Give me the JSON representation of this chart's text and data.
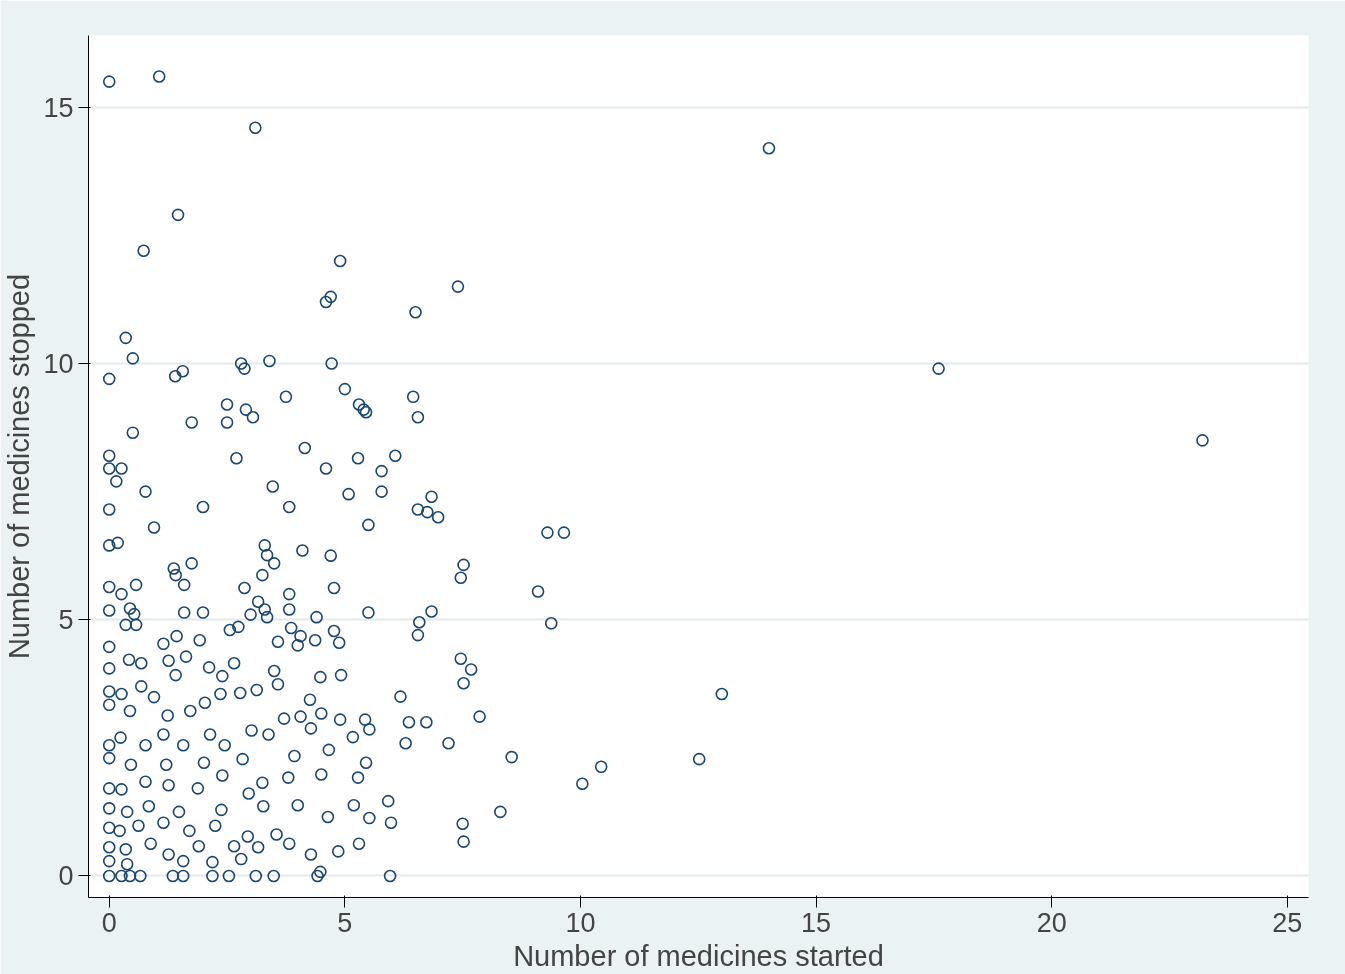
{
  "chart_data": {
    "type": "scatter",
    "xlabel": "Number of medicines started",
    "ylabel": "Number of medicines stopped",
    "xlim": [
      -0.44,
      25.45
    ],
    "ylim": [
      -0.42,
      16.4
    ],
    "xticks": [
      0,
      5,
      10,
      15,
      20,
      25
    ],
    "yticks": [
      0,
      5,
      10,
      15
    ],
    "grid": "y",
    "marker": "circle",
    "series": [
      {
        "color": "#1a476f",
        "x": [
          0,
          1.06,
          3.1,
          1.46,
          0.73,
          14.0,
          17.6,
          23.2,
          4.9,
          7.4,
          4.7,
          4.6,
          6.5,
          0.35,
          0.5,
          0,
          1.4,
          1.56,
          2.8,
          2.87,
          3.4,
          4.72,
          2.5,
          2.9,
          3.05,
          2.5,
          3.75,
          5.0,
          5.3,
          5.4,
          5.45,
          6.45,
          6.55,
          1.75,
          0.5,
          0,
          0,
          0.26,
          0.15,
          0.77,
          2.7,
          4.15,
          4.6,
          5.28,
          6.07,
          5.78,
          5.78,
          5.08,
          3.47,
          3.82,
          1.99,
          0,
          0.95,
          5.5,
          6.55,
          6.75,
          6.98,
          6.84,
          9.3,
          9.65,
          0,
          0.18,
          1.75,
          1.37,
          1.41,
          3.3,
          3.35,
          3.5,
          4.1,
          4.7,
          3.25,
          7.52,
          7.46,
          0,
          0.26,
          0.57,
          1.59,
          2.87,
          3.82,
          4.77,
          9.1,
          0,
          0.44,
          0.53,
          1.59,
          1.99,
          3.0,
          3.16,
          3.3,
          3.35,
          3.82,
          4.4,
          5.5,
          6.84,
          6.58,
          6.55,
          9.38,
          0.35,
          0.57,
          0,
          1.15,
          1.43,
          1.92,
          2.56,
          2.74,
          3.86,
          4.06,
          3.58,
          4.0,
          4.37,
          4.77,
          4.88,
          0,
          0.42,
          0.68,
          1.26,
          1.41,
          1.63,
          2.12,
          2.4,
          2.65,
          3.5,
          3.58,
          4.48,
          4.92,
          7.46,
          7.68,
          7.52,
          0,
          0.26,
          0.68,
          0,
          0.95,
          0.44,
          1.24,
          1.72,
          2.03,
          2.36,
          2.78,
          3.13,
          3.71,
          4.06,
          4.26,
          4.5,
          4.9,
          5.43,
          6.18,
          6.36,
          6.73,
          7.86,
          13.0,
          0,
          0.24,
          0.77,
          1.15,
          1.57,
          2.14,
          2.45,
          3.02,
          3.38,
          4.28,
          4.66,
          5.17,
          5.52,
          6.29,
          7.2,
          8.54,
          10.44,
          12.52,
          0,
          0.46,
          1.21,
          2.01,
          2.83,
          3.93,
          5.45,
          10.04,
          0,
          0.26,
          0.77,
          1.26,
          1.88,
          2.4,
          2.96,
          3.25,
          3.8,
          4.5,
          5.28,
          5.92,
          0,
          0.38,
          0.84,
          1.48,
          2.38,
          3.27,
          4.0,
          4.64,
          5.19,
          5.52,
          5.98,
          7.5,
          8.3,
          0,
          0.22,
          0.62,
          1.15,
          1.7,
          2.25,
          2.94,
          3.55,
          7.52,
          0,
          0.35,
          0.88,
          1.9,
          2.65,
          3.16,
          3.82,
          5.3,
          0,
          0.38,
          1.26,
          1.57,
          2.19,
          2.8,
          4.28,
          4.86,
          0,
          0.26,
          0.44,
          0.66,
          1.35,
          1.57,
          2.19,
          2.54,
          3.11,
          3.49,
          4.42,
          4.48,
          5.96
        ],
        "values": [
          15.5,
          15.6,
          14.6,
          12.9,
          12.2,
          14.2,
          9.9,
          8.5,
          12.0,
          11.5,
          11.3,
          11.2,
          11.0,
          10.5,
          10.1,
          9.7,
          9.75,
          9.85,
          10.0,
          9.9,
          10.05,
          10.0,
          9.2,
          9.1,
          8.95,
          8.85,
          9.35,
          9.5,
          9.2,
          9.1,
          9.05,
          9.35,
          8.95,
          8.85,
          8.65,
          8.2,
          7.95,
          7.95,
          7.7,
          7.5,
          8.15,
          8.35,
          7.95,
          8.15,
          8.2,
          7.9,
          7.5,
          7.45,
          7.6,
          7.2,
          7.2,
          7.15,
          6.8,
          6.85,
          7.15,
          7.1,
          7.0,
          7.4,
          6.7,
          6.7,
          6.45,
          6.5,
          6.1,
          6.0,
          5.87,
          6.45,
          6.26,
          6.1,
          6.35,
          6.25,
          5.87,
          6.07,
          5.82,
          5.64,
          5.5,
          5.68,
          5.68,
          5.62,
          5.5,
          5.62,
          5.55,
          5.18,
          5.22,
          5.11,
          5.14,
          5.14,
          5.1,
          5.35,
          5.2,
          5.05,
          5.2,
          5.05,
          5.14,
          5.16,
          4.95,
          4.7,
          4.93,
          4.9,
          4.9,
          4.47,
          4.53,
          4.68,
          4.6,
          4.8,
          4.86,
          4.84,
          4.68,
          4.57,
          4.5,
          4.6,
          4.78,
          4.55,
          4.05,
          4.22,
          4.15,
          4.2,
          3.92,
          4.28,
          4.07,
          3.9,
          4.15,
          4.0,
          3.74,
          3.88,
          3.92,
          4.24,
          4.03,
          3.76,
          3.6,
          3.55,
          3.7,
          3.34,
          3.49,
          3.22,
          3.13,
          3.22,
          3.38,
          3.55,
          3.57,
          3.63,
          3.07,
          3.11,
          3.44,
          3.17,
          3.05,
          3.05,
          3.5,
          3.0,
          3.0,
          3.11,
          3.55,
          2.55,
          2.7,
          2.55,
          2.76,
          2.55,
          2.76,
          2.55,
          2.84,
          2.76,
          2.88,
          2.46,
          2.71,
          2.86,
          2.59,
          2.59,
          2.32,
          2.13,
          2.28,
          2.3,
          2.17,
          2.17,
          2.21,
          2.28,
          2.34,
          2.21,
          1.8,
          1.71,
          1.69,
          1.84,
          1.77,
          1.71,
          1.96,
          1.61,
          1.82,
          1.92,
          1.98,
          1.92,
          1.46,
          1.32,
          1.25,
          1.36,
          1.25,
          1.29,
          1.36,
          1.38,
          1.15,
          1.38,
          1.13,
          1.04,
          1.02,
          1.25,
          0.94,
          0.88,
          0.98,
          1.04,
          0.88,
          0.98,
          0.77,
          0.81,
          0.67,
          0.56,
          0.52,
          0.63,
          0.58,
          0.58,
          0.56,
          0.63,
          0.63,
          0.29,
          0.23,
          0.42,
          0.29,
          0.27,
          0.33,
          0.42,
          0.48,
          0,
          0,
          0,
          0,
          0,
          0,
          0,
          0,
          0,
          0,
          0,
          0.08,
          0
        ]
      }
    ]
  }
}
